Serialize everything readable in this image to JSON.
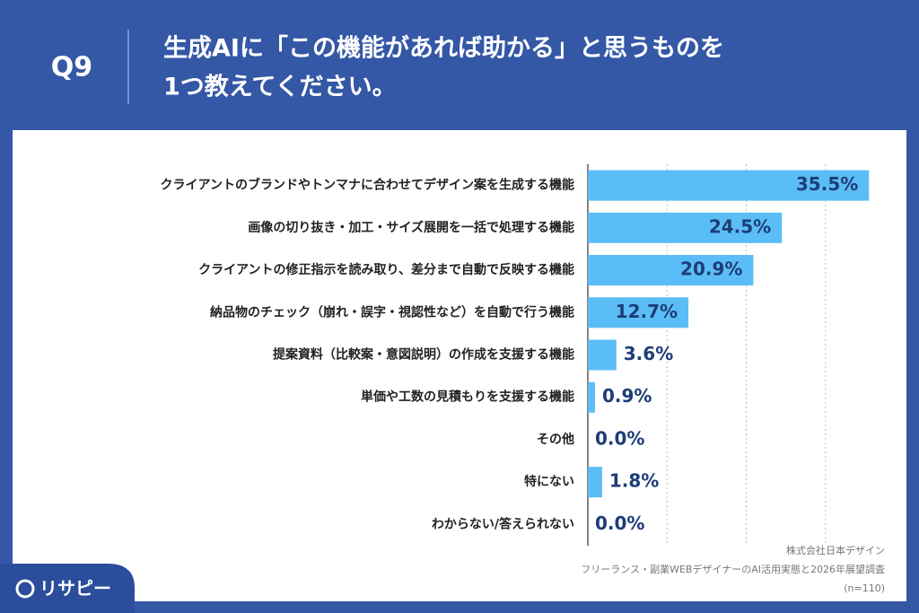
{
  "header": {
    "question": "Q9",
    "title_lines": [
      "生成AIに「この機能があれば助かる」と思うものを",
      "1つ教えてください。"
    ]
  },
  "chart_data": {
    "type": "bar",
    "orientation": "horizontal",
    "categories": [
      "クライアントのブランドやトンマナに合わせてデザイン案を生成する機能",
      "画像の切り抜き・加工・サイズ展開を一括で処理する機能",
      "クライアントの修正指示を読み取り、差分まで自動で反映する機能",
      "納品物のチェック（崩れ・誤字・視認性など）を自動で行う機能",
      "提案資料（比較案・意図説明）の作成を支援する機能",
      "単価や工数の見積もりを支援する機能",
      "その他",
      "特にない",
      "わからない/答えられない"
    ],
    "values": [
      35.5,
      24.5,
      20.9,
      12.7,
      3.6,
      0.9,
      0.0,
      1.8,
      0.0
    ],
    "value_labels": [
      "35.5%",
      "24.5%",
      "20.9%",
      "12.7%",
      "3.6%",
      "0.9%",
      "0.0%",
      "1.8%",
      "0.0%"
    ],
    "color": "#5bbdf6",
    "xlim": [
      0,
      40
    ],
    "xticks": [
      0,
      10,
      20,
      30
    ],
    "grid": true
  },
  "footer": {
    "logo": "リサピー",
    "source": [
      "株式会社日本デザイン",
      "フリーランス・副業WEBデザイナーのAI活用実態と2026年展望調査",
      "(n=110)"
    ]
  }
}
